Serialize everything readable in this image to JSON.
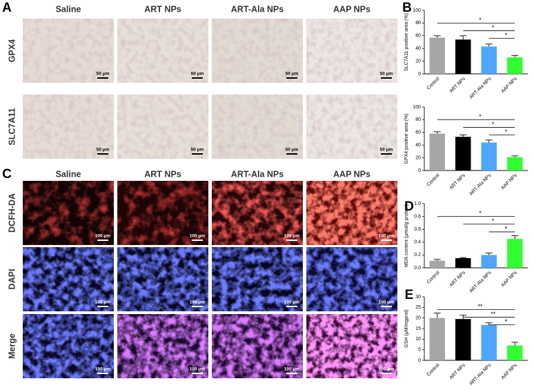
{
  "chart_data": [
    {
      "type": "bar",
      "ylabel": "SLC7A11 positive area (%)",
      "categories": [
        "Control",
        "ART NPs",
        "ART-Ala NPs",
        "AAP NPs"
      ],
      "values": [
        57,
        54,
        43,
        26
      ],
      "errors": [
        3,
        6,
        4,
        3
      ],
      "colors": [
        "#a6a6a6",
        "#000000",
        "#4da6ff",
        "#33ff33"
      ],
      "ylim": [
        0,
        100
      ],
      "yticks": [
        0,
        20,
        40,
        60,
        80,
        100
      ],
      "significance": [
        "*",
        "*",
        "*"
      ]
    },
    {
      "type": "bar",
      "ylabel": "GPX4 positive area (%)",
      "categories": [
        "Control",
        "ART NPs",
        "ART-Ala NPs",
        "AAP NPs"
      ],
      "values": [
        58,
        53,
        44,
        21
      ],
      "errors": [
        3,
        3,
        4,
        2
      ],
      "colors": [
        "#a6a6a6",
        "#000000",
        "#4da6ff",
        "#33ff33"
      ],
      "ylim": [
        0,
        100
      ],
      "yticks": [
        0,
        20,
        40,
        60,
        80,
        100
      ],
      "significance": [
        "*",
        "*",
        "*"
      ]
    },
    {
      "type": "bar",
      "ylabel": "MDA content (μmol/g protein)",
      "categories": [
        "Control",
        "ART NPs",
        "ART-Ala NPs",
        "AAP NPs"
      ],
      "values": [
        0.11,
        0.15,
        0.2,
        0.45
      ],
      "errors": [
        0.02,
        0.01,
        0.03,
        0.05
      ],
      "colors": [
        "#a6a6a6",
        "#000000",
        "#4da6ff",
        "#33ff33"
      ],
      "ylim": [
        0,
        1
      ],
      "yticks": [
        {
          "value": 0,
          "label": "0.0"
        },
        0.2,
        0.4,
        0.6,
        0.8,
        {
          "value": 1,
          "label": "1.0"
        }
      ],
      "significance": [
        "*",
        "*",
        "*"
      ]
    },
    {
      "type": "bar",
      "ylabel": "GSH (μM/mgprot)",
      "categories": [
        "Control",
        "ART NPs",
        "ART-Ala NPs",
        "AAP NPs"
      ],
      "values": [
        20,
        19.5,
        16.7,
        7
      ],
      "errors": [
        2.3,
        1.8,
        1,
        1.5
      ],
      "colors": [
        "#a6a6a6",
        "#000000",
        "#4da6ff",
        "#33ff33"
      ],
      "ylim": [
        0,
        30
      ],
      "yticks": [
        0,
        5,
        10,
        15,
        20,
        25,
        30
      ],
      "significance": [
        "**",
        "**",
        "*"
      ]
    }
  ],
  "figure": {
    "letters": [
      "A",
      "B",
      "C",
      "D",
      "E"
    ],
    "panel_a": {
      "columns": [
        "Saline",
        "ART NPs",
        "ART-Ala NPs",
        "AAP NPs"
      ],
      "rows": [
        "GPX4",
        "SLC7A11"
      ],
      "scale_bars": [
        [
          "50 μm",
          "50 μm",
          "50 μm",
          "50 μm"
        ],
        [
          "50 μm",
          "50 μm",
          "50 μm",
          "50 μm"
        ]
      ]
    },
    "panel_c": {
      "columns": [
        "Saline",
        "ART NPs",
        "ART-Ala NPs",
        "AAP NPs"
      ],
      "rows": [
        "DCFH-DA",
        "DAPI",
        "Merge"
      ],
      "scale_bars": [
        [
          "100 μm",
          "100 μm",
          "100 μm",
          "100 μm"
        ],
        [
          "100 μm",
          "100 μm",
          "100 μm",
          "100 μm"
        ],
        [
          "100 μm",
          "100 μm",
          "100 μm",
          "100 μm"
        ]
      ]
    }
  }
}
